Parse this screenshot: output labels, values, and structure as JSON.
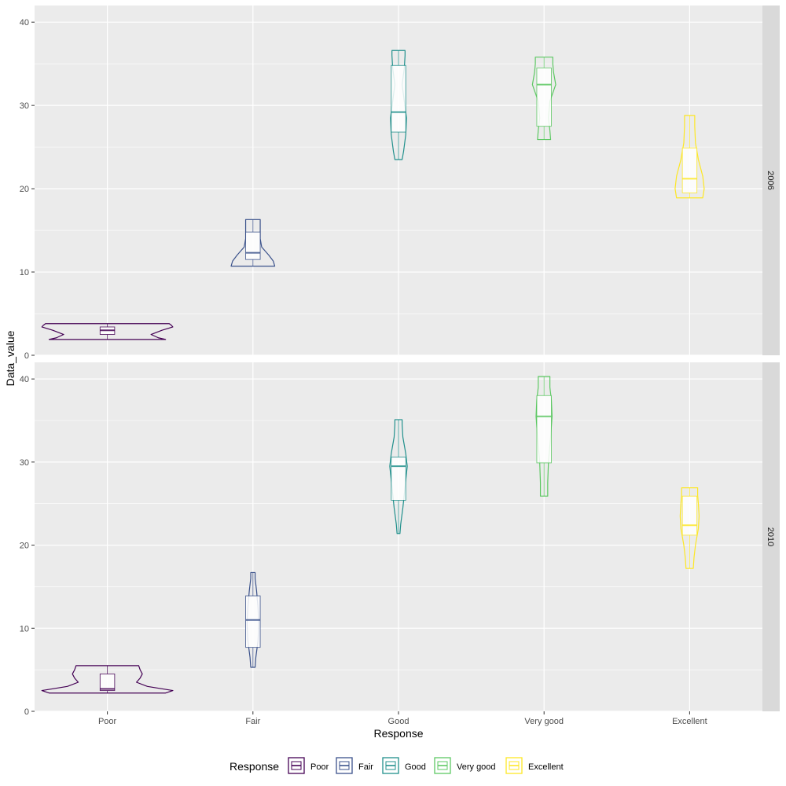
{
  "chart_data": {
    "type": "violin",
    "xlabel": "Response",
    "ylabel": "Data_value",
    "categories": [
      "Poor",
      "Fair",
      "Good",
      "Very good",
      "Excellent"
    ],
    "ylim": [
      0,
      42
    ],
    "yticks": [
      0,
      10,
      20,
      30,
      40
    ],
    "grid": true,
    "legend": {
      "title": "Response",
      "position": "bottom"
    },
    "colors": {
      "Poor": "#440154",
      "Fair": "#3B528B",
      "Good": "#21908C",
      "Very good": "#5DC863",
      "Excellent": "#FDE725"
    },
    "panels": [
      {
        "label": "2006",
        "groups": [
          {
            "category": "Poor",
            "min": 1.9,
            "q1": 2.5,
            "median": 3.0,
            "q3": 3.4,
            "max": 3.8,
            "density": [
              [
                1.9,
                0.8
              ],
              [
                2.1,
                0.7
              ],
              [
                2.5,
                0.6
              ],
              [
                3.0,
                0.75
              ],
              [
                3.4,
                0.9
              ],
              [
                3.6,
                0.88
              ],
              [
                3.8,
                0.85
              ]
            ]
          },
          {
            "category": "Fair",
            "min": 10.7,
            "q1": 11.5,
            "median": 12.3,
            "q3": 14.8,
            "max": 16.3,
            "density": [
              [
                10.7,
                0.3
              ],
              [
                11.3,
                0.28
              ],
              [
                12.0,
                0.22
              ],
              [
                13.0,
                0.12
              ],
              [
                14.0,
                0.1
              ],
              [
                15.0,
                0.1
              ],
              [
                16.3,
                0.1
              ]
            ]
          },
          {
            "category": "Good",
            "min": 23.5,
            "q1": 26.8,
            "median": 29.2,
            "q3": 34.8,
            "max": 36.6,
            "density": [
              [
                23.5,
                0.05
              ],
              [
                24.5,
                0.07
              ],
              [
                26.5,
                0.1
              ],
              [
                28.5,
                0.11
              ],
              [
                30.5,
                0.08
              ],
              [
                32.5,
                0.05
              ],
              [
                34.5,
                0.08
              ],
              [
                36.0,
                0.09
              ],
              [
                36.6,
                0.09
              ]
            ]
          },
          {
            "category": "Very good",
            "min": 25.9,
            "q1": 27.5,
            "median": 32.5,
            "q3": 34.5,
            "max": 35.8,
            "density": [
              [
                25.9,
                0.09
              ],
              [
                27.0,
                0.08
              ],
              [
                28.5,
                0.06
              ],
              [
                30.5,
                0.08
              ],
              [
                32.5,
                0.16
              ],
              [
                34.0,
                0.13
              ],
              [
                35.0,
                0.12
              ],
              [
                35.8,
                0.12
              ]
            ]
          },
          {
            "category": "Excellent",
            "min": 18.9,
            "q1": 19.5,
            "median": 21.2,
            "q3": 24.9,
            "max": 28.8,
            "density": [
              [
                18.9,
                0.18
              ],
              [
                20.0,
                0.2
              ],
              [
                21.5,
                0.18
              ],
              [
                23.5,
                0.12
              ],
              [
                25.5,
                0.08
              ],
              [
                27.5,
                0.07
              ],
              [
                28.8,
                0.07
              ]
            ]
          }
        ]
      },
      {
        "label": "2010",
        "groups": [
          {
            "category": "Poor",
            "min": 2.2,
            "q1": 2.5,
            "median": 2.7,
            "q3": 4.5,
            "max": 5.5,
            "density": [
              [
                2.2,
                0.8
              ],
              [
                2.5,
                0.9
              ],
              [
                3.0,
                0.55
              ],
              [
                3.5,
                0.4
              ],
              [
                4.0,
                0.45
              ],
              [
                4.5,
                0.48
              ],
              [
                5.0,
                0.45
              ],
              [
                5.5,
                0.43
              ]
            ]
          },
          {
            "category": "Fair",
            "min": 5.3,
            "q1": 7.7,
            "median": 11.0,
            "q3": 13.9,
            "max": 16.7,
            "density": [
              [
                5.3,
                0.03
              ],
              [
                6.5,
                0.04
              ],
              [
                8.5,
                0.07
              ],
              [
                10.5,
                0.08
              ],
              [
                12.5,
                0.07
              ],
              [
                14.5,
                0.05
              ],
              [
                16.0,
                0.03
              ],
              [
                16.7,
                0.03
              ]
            ]
          },
          {
            "category": "Good",
            "min": 21.4,
            "q1": 25.4,
            "median": 29.5,
            "q3": 30.6,
            "max": 35.1,
            "density": [
              [
                21.4,
                0.02
              ],
              [
                22.5,
                0.03
              ],
              [
                24.5,
                0.06
              ],
              [
                27.0,
                0.09
              ],
              [
                29.5,
                0.12
              ],
              [
                31.0,
                0.1
              ],
              [
                33.0,
                0.06
              ],
              [
                34.5,
                0.05
              ],
              [
                35.1,
                0.05
              ]
            ]
          },
          {
            "category": "Very good",
            "min": 25.9,
            "q1": 29.9,
            "median": 35.5,
            "q3": 38.0,
            "max": 40.3,
            "density": [
              [
                25.9,
                0.05
              ],
              [
                27.5,
                0.05
              ],
              [
                30.0,
                0.06
              ],
              [
                33.0,
                0.09
              ],
              [
                35.5,
                0.11
              ],
              [
                37.5,
                0.1
              ],
              [
                39.0,
                0.08
              ],
              [
                40.3,
                0.08
              ]
            ]
          },
          {
            "category": "Excellent",
            "min": 17.2,
            "q1": 21.2,
            "median": 22.4,
            "q3": 25.9,
            "max": 26.9,
            "density": [
              [
                17.2,
                0.05
              ],
              [
                18.5,
                0.06
              ],
              [
                20.0,
                0.08
              ],
              [
                22.0,
                0.12
              ],
              [
                23.5,
                0.13
              ],
              [
                25.0,
                0.12
              ],
              [
                26.0,
                0.11
              ],
              [
                26.9,
                0.11
              ]
            ]
          }
        ]
      }
    ]
  }
}
